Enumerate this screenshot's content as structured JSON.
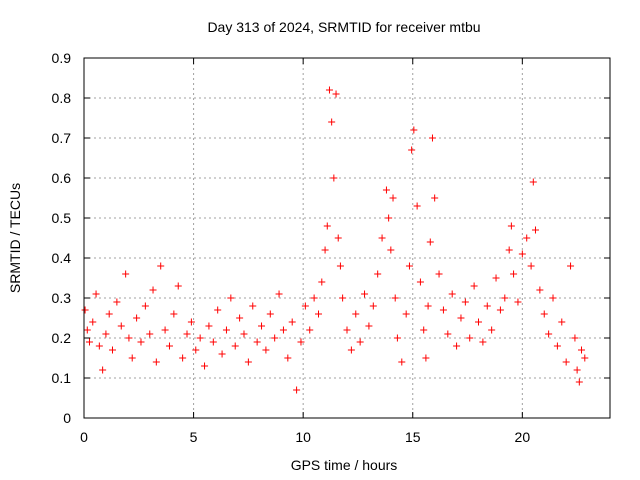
{
  "chart_data": {
    "type": "scatter",
    "title": "Day 313 of 2024, SRMTID for receiver mtbu",
    "xlabel": "GPS time / hours",
    "ylabel": "SRMTID / TECUs",
    "xlim": [
      0,
      24
    ],
    "ylim": [
      0,
      0.9
    ],
    "xticks": [
      0,
      5,
      10,
      15,
      20
    ],
    "yticks": [
      0,
      0.1,
      0.2,
      0.3,
      0.4,
      0.5,
      0.6,
      0.7,
      0.8,
      0.9
    ],
    "grid": true,
    "marker": "plus",
    "color": "#ff0000",
    "series": [
      {
        "name": "SRMTID",
        "x": [
          0.05,
          0.15,
          0.25,
          0.4,
          0.55,
          0.7,
          0.85,
          1.0,
          1.15,
          1.3,
          1.5,
          1.7,
          1.9,
          2.05,
          2.2,
          2.4,
          2.6,
          2.8,
          3.0,
          3.15,
          3.3,
          3.5,
          3.7,
          3.9,
          4.1,
          4.3,
          4.5,
          4.7,
          4.9,
          5.1,
          5.3,
          5.5,
          5.7,
          5.9,
          6.1,
          6.3,
          6.5,
          6.7,
          6.9,
          7.1,
          7.3,
          7.5,
          7.7,
          7.9,
          8.1,
          8.3,
          8.5,
          8.7,
          8.9,
          9.1,
          9.3,
          9.5,
          9.7,
          9.9,
          10.1,
          10.3,
          10.5,
          10.7,
          10.85,
          11.0,
          11.1,
          11.2,
          11.3,
          11.4,
          11.5,
          11.6,
          11.7,
          11.8,
          12.0,
          12.2,
          12.4,
          12.6,
          12.8,
          13.0,
          13.2,
          13.4,
          13.6,
          13.8,
          13.9,
          14.0,
          14.1,
          14.2,
          14.3,
          14.5,
          14.7,
          14.85,
          14.95,
          15.05,
          15.2,
          15.35,
          15.5,
          15.6,
          15.7,
          15.8,
          15.9,
          16.0,
          16.2,
          16.4,
          16.6,
          16.8,
          17.0,
          17.2,
          17.4,
          17.6,
          17.8,
          18.0,
          18.2,
          18.4,
          18.6,
          18.8,
          19.0,
          19.2,
          19.4,
          19.5,
          19.6,
          19.8,
          20.0,
          20.2,
          20.4,
          20.5,
          20.6,
          20.8,
          21.0,
          21.2,
          21.4,
          21.6,
          21.8,
          22.0,
          22.2,
          22.4,
          22.5,
          22.6,
          22.7,
          22.85
        ],
        "y": [
          0.27,
          0.22,
          0.19,
          0.24,
          0.31,
          0.18,
          0.12,
          0.21,
          0.26,
          0.17,
          0.29,
          0.23,
          0.36,
          0.2,
          0.15,
          0.25,
          0.19,
          0.28,
          0.21,
          0.32,
          0.14,
          0.38,
          0.22,
          0.18,
          0.26,
          0.33,
          0.15,
          0.21,
          0.24,
          0.17,
          0.2,
          0.13,
          0.23,
          0.19,
          0.27,
          0.16,
          0.22,
          0.3,
          0.18,
          0.25,
          0.21,
          0.14,
          0.28,
          0.19,
          0.23,
          0.17,
          0.26,
          0.2,
          0.31,
          0.22,
          0.15,
          0.24,
          0.07,
          0.19,
          0.28,
          0.22,
          0.3,
          0.26,
          0.34,
          0.42,
          0.48,
          0.82,
          0.74,
          0.6,
          0.81,
          0.45,
          0.38,
          0.3,
          0.22,
          0.17,
          0.26,
          0.19,
          0.31,
          0.23,
          0.28,
          0.36,
          0.45,
          0.57,
          0.5,
          0.42,
          0.55,
          0.3,
          0.2,
          0.14,
          0.26,
          0.38,
          0.67,
          0.72,
          0.53,
          0.34,
          0.22,
          0.15,
          0.28,
          0.44,
          0.7,
          0.55,
          0.36,
          0.27,
          0.21,
          0.31,
          0.18,
          0.25,
          0.29,
          0.2,
          0.33,
          0.24,
          0.19,
          0.28,
          0.22,
          0.35,
          0.27,
          0.3,
          0.42,
          0.48,
          0.36,
          0.29,
          0.41,
          0.45,
          0.38,
          0.59,
          0.47,
          0.32,
          0.26,
          0.21,
          0.3,
          0.18,
          0.24,
          0.14,
          0.38,
          0.2,
          0.12,
          0.09,
          0.17,
          0.15
        ]
      }
    ]
  }
}
